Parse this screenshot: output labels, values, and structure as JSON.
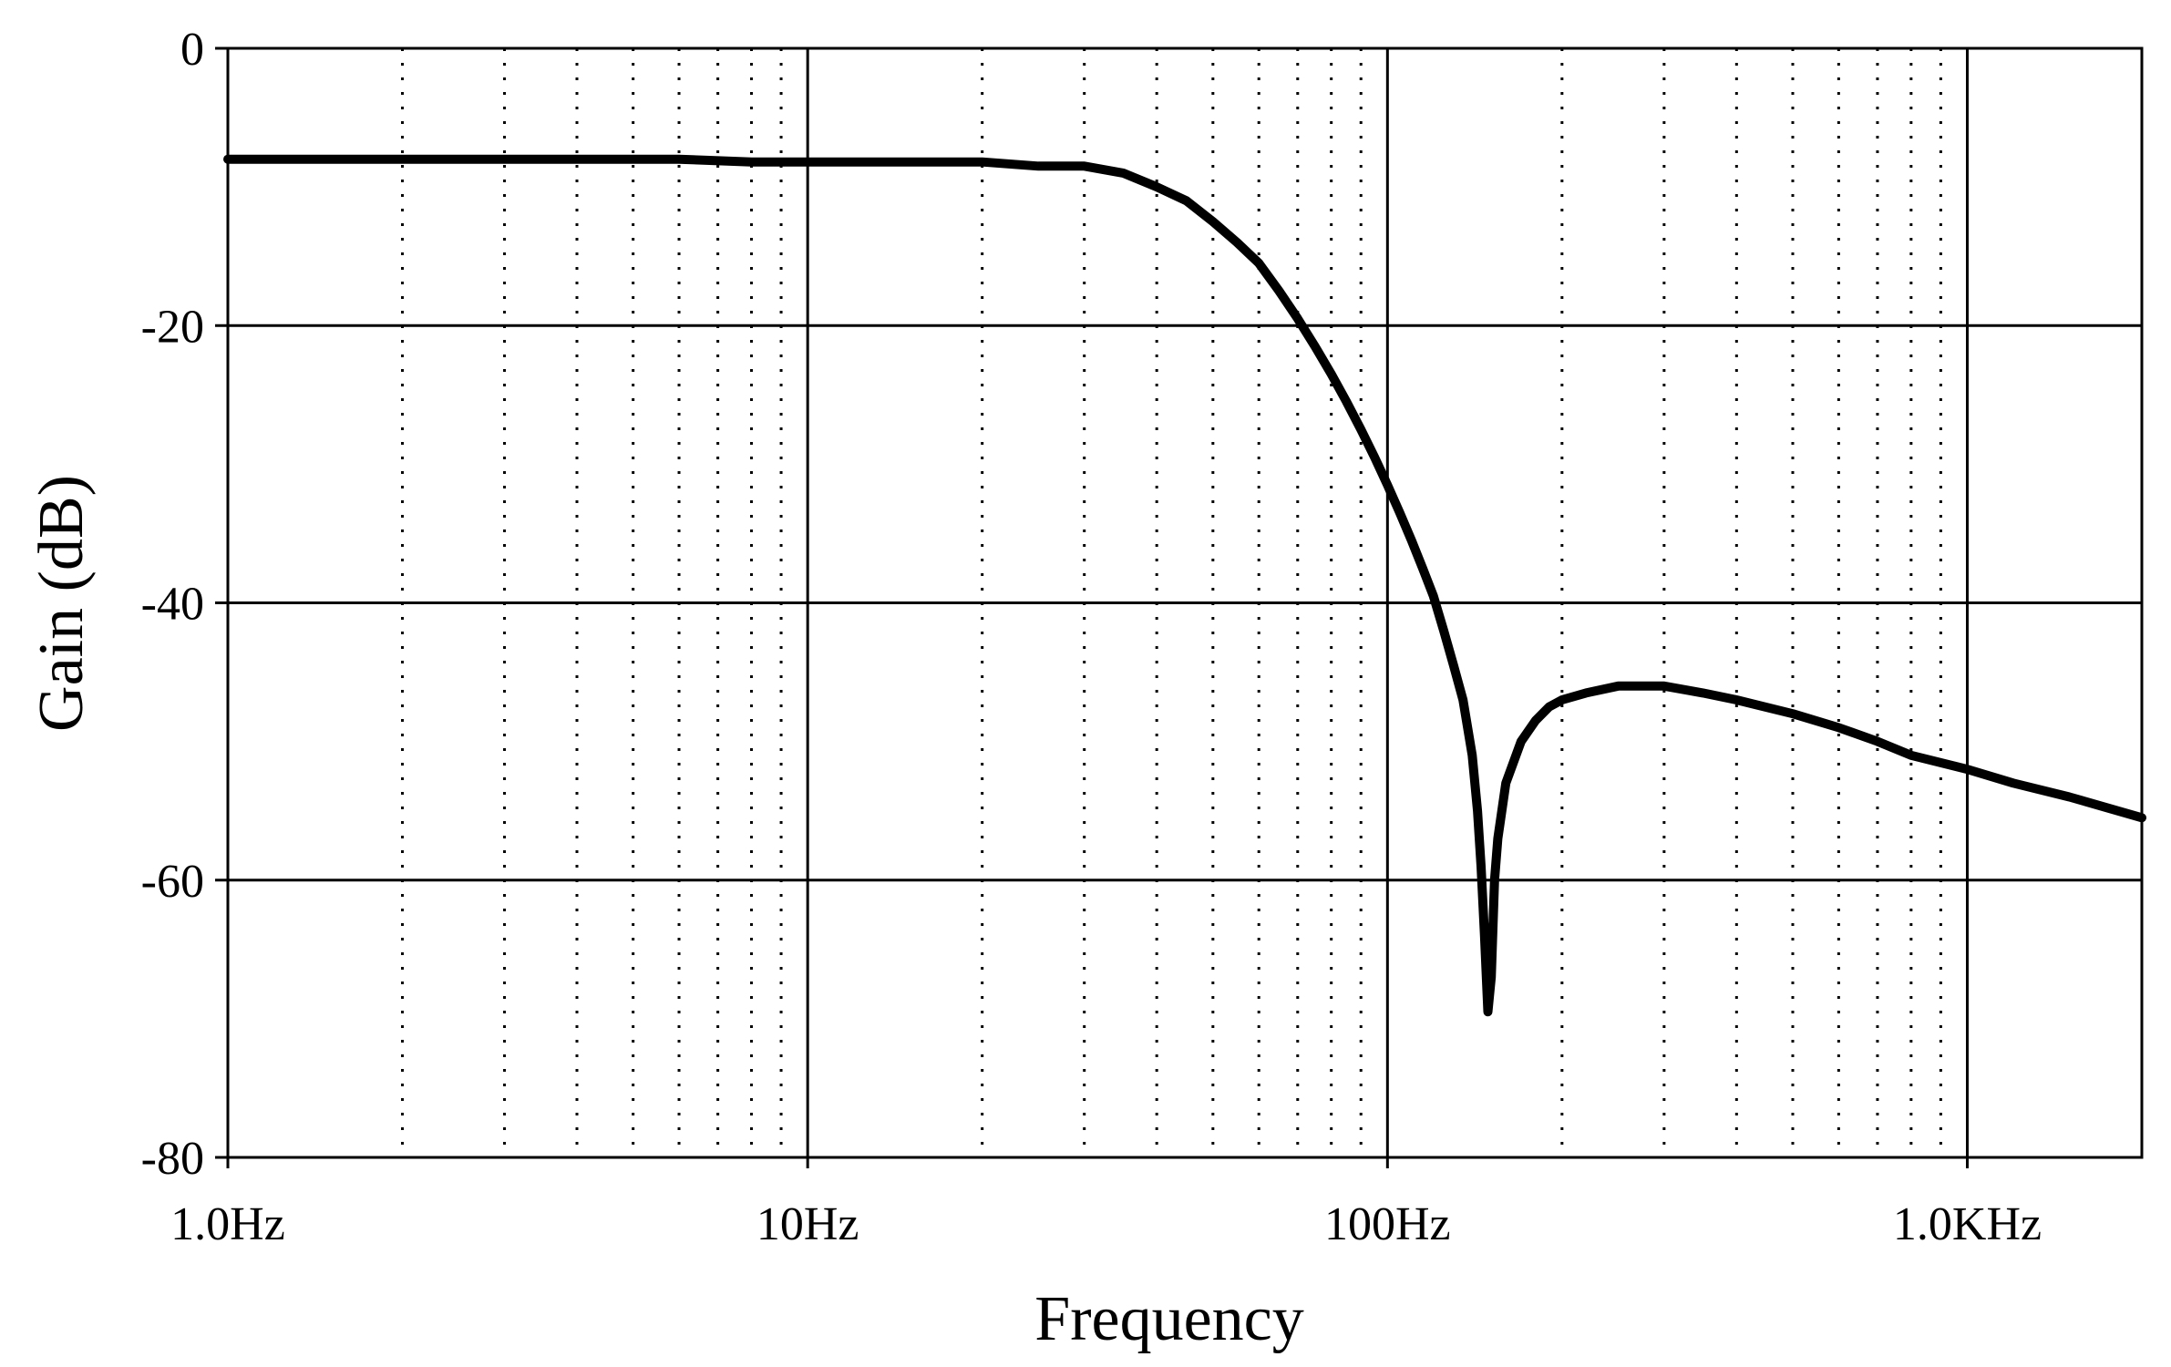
{
  "chart_data": {
    "type": "line",
    "title": "",
    "xlabel": "Frequency",
    "ylabel": "Gain (dB)",
    "xscale": "log",
    "xlim": [
      1,
      2000
    ],
    "ylim": [
      -80,
      0
    ],
    "grid": true,
    "x_ticks": [
      1,
      10,
      100,
      1000
    ],
    "x_tick_labels": [
      "1.0Hz",
      "10Hz",
      "100Hz",
      "1.0KHz"
    ],
    "y_ticks": [
      0,
      -20,
      -40,
      -60,
      -80
    ],
    "y_tick_labels": [
      "0",
      "-20",
      "-40",
      "-60",
      "-80"
    ],
    "series": [
      {
        "color": "#000000",
        "x": [
          1,
          2,
          4,
          6,
          8,
          10,
          15,
          20,
          25,
          30,
          35,
          40,
          45,
          50,
          55,
          60,
          65,
          70,
          75,
          80,
          85,
          90,
          95,
          100,
          105,
          110,
          115,
          120,
          125,
          130,
          135,
          140,
          143,
          145,
          147,
          149,
          151,
          153,
          155,
          160,
          170,
          180,
          190,
          200,
          220,
          250,
          300,
          350,
          400,
          500,
          600,
          700,
          800,
          1000,
          1200,
          1500,
          2000
        ],
        "y": [
          -8,
          -8,
          -8,
          -8,
          -8.2,
          -8.2,
          -8.2,
          -8.2,
          -8.5,
          -8.5,
          -9,
          -10,
          -11,
          -12.5,
          -14,
          -15.5,
          -17.5,
          -19.5,
          -21.5,
          -23.5,
          -25.5,
          -27.5,
          -29.5,
          -31.5,
          -33.5,
          -35.5,
          -37.5,
          -39.5,
          -42,
          -44.5,
          -47,
          -51,
          -55,
          -59,
          -64,
          -69.5,
          -67,
          -60,
          -57,
          -53,
          -50,
          -48.5,
          -47.5,
          -47,
          -46.5,
          -46,
          -46,
          -46.5,
          -47,
          -48,
          -49,
          -50,
          -51,
          -52,
          -53,
          -54,
          -55.5
        ]
      }
    ]
  }
}
